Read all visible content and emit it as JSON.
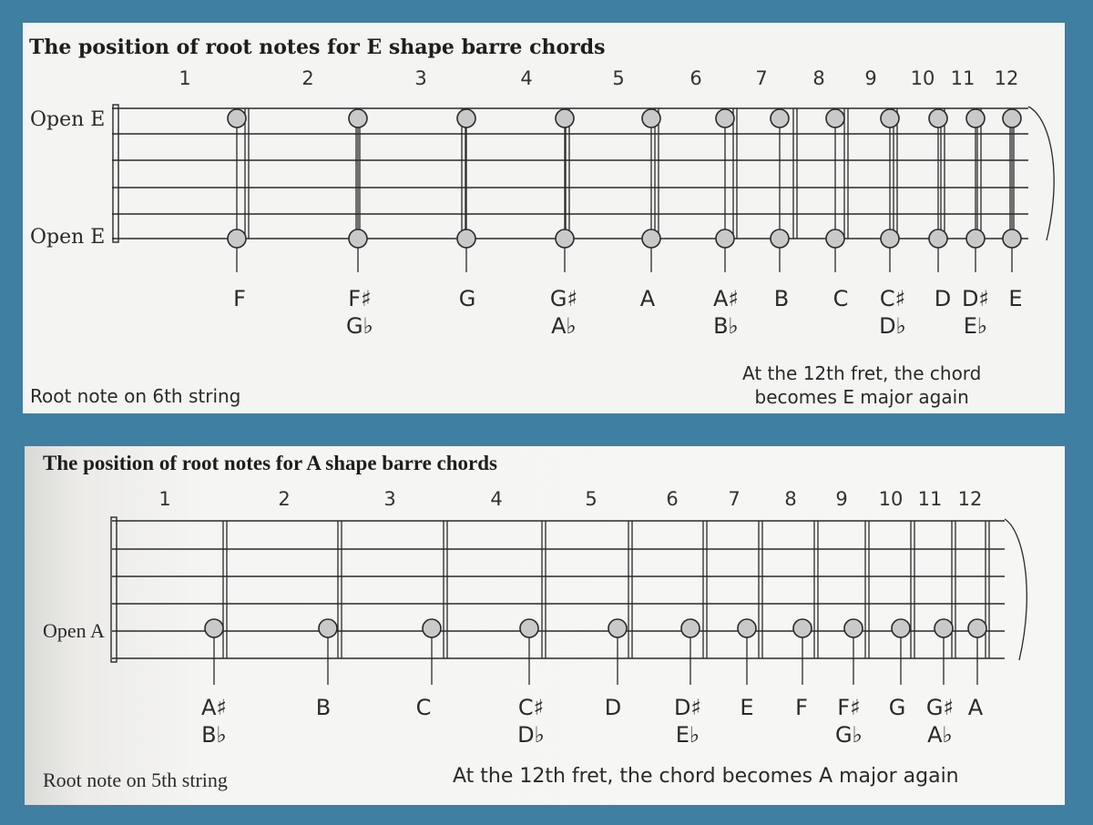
{
  "e_shape": {
    "title": "The position of root notes for E shape barre chords",
    "fret_numbers": [
      "1",
      "2",
      "3",
      "4",
      "5",
      "6",
      "7",
      "8",
      "9",
      "10",
      "11",
      "12"
    ],
    "string_labels": [
      "Open E",
      "Open E"
    ],
    "notes": [
      {
        "fret": 1,
        "main": "F",
        "alt": ""
      },
      {
        "fret": 2,
        "main": "F♯",
        "alt": "G♭"
      },
      {
        "fret": 3,
        "main": "G",
        "alt": ""
      },
      {
        "fret": 4,
        "main": "G♯",
        "alt": "A♭"
      },
      {
        "fret": 5,
        "main": "A",
        "alt": ""
      },
      {
        "fret": 6,
        "main": "A♯",
        "alt": "B♭"
      },
      {
        "fret": 7,
        "main": "B",
        "alt": ""
      },
      {
        "fret": 8,
        "main": "C",
        "alt": ""
      },
      {
        "fret": 9,
        "main": "C♯",
        "alt": "D♭"
      },
      {
        "fret": 10,
        "main": "D",
        "alt": ""
      },
      {
        "fret": 11,
        "main": "D♯",
        "alt": "E♭"
      },
      {
        "fret": 12,
        "main": "E",
        "alt": ""
      }
    ],
    "caption_left": "Root note on 6th string",
    "caption_right_line1": "At the 12th fret, the chord",
    "caption_right_line2": "becomes E major again"
  },
  "a_shape": {
    "title": "The position of root notes for A shape barre chords",
    "fret_numbers": [
      "1",
      "2",
      "3",
      "4",
      "5",
      "6",
      "7",
      "8",
      "9",
      "10",
      "11",
      "12"
    ],
    "string_label": "Open A",
    "notes": [
      {
        "fret": 1,
        "main": "A♯",
        "alt": "B♭"
      },
      {
        "fret": 2,
        "main": "B",
        "alt": ""
      },
      {
        "fret": 3,
        "main": "C",
        "alt": ""
      },
      {
        "fret": 4,
        "main": "C♯",
        "alt": "D♭"
      },
      {
        "fret": 5,
        "main": "D",
        "alt": ""
      },
      {
        "fret": 6,
        "main": "D♯",
        "alt": "E♭"
      },
      {
        "fret": 7,
        "main": "E",
        "alt": ""
      },
      {
        "fret": 8,
        "main": "F",
        "alt": ""
      },
      {
        "fret": 9,
        "main": "F♯",
        "alt": "G♭"
      },
      {
        "fret": 10,
        "main": "G",
        "alt": ""
      },
      {
        "fret": 11,
        "main": "G♯",
        "alt": "A♭"
      },
      {
        "fret": 12,
        "main": "A",
        "alt": ""
      }
    ],
    "caption_left": "Root note on 5th string",
    "caption_right": "At the 12th fret, the chord becomes A major again"
  },
  "colors": {
    "frame": "#3f7fa1",
    "panel": "#f4f4f2",
    "ink": "#2a2a2a",
    "dot_fill": "#c9c9c9"
  }
}
